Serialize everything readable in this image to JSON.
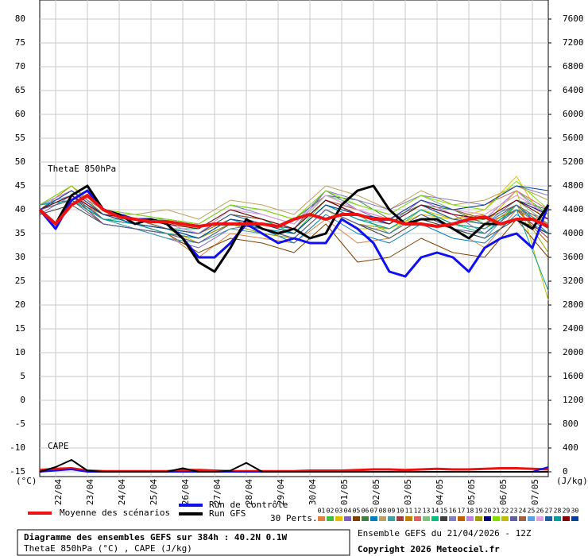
{
  "chart_data": {
    "type": "line",
    "title": "Diagramme des ensembles GEFS sur 384h : 40.2N 0.1W",
    "subtitle": "ThetaE 850hPa (°C) , CAPE (J/kg)",
    "run_label": "Ensemble GEFS du 21/04/2026 - 12Z",
    "copyright": "Copyright 2026 Meteociel.fr",
    "y_label": "(°C)",
    "y2_label": "(J/kg)",
    "theta_label": "ThetaE 850hPa",
    "cape_label": "CAPE",
    "perturbations_label": "30 Perts.",
    "grid": true,
    "xlim": [
      0,
      384
    ],
    "xticks": [
      {
        "value": 12,
        "label": "22/04"
      },
      {
        "value": 36,
        "label": "23/04"
      },
      {
        "value": 60,
        "label": "24/04"
      },
      {
        "value": 84,
        "label": "25/04"
      },
      {
        "value": 108,
        "label": "26/04"
      },
      {
        "value": 132,
        "label": "27/04"
      },
      {
        "value": 156,
        "label": "28/04"
      },
      {
        "value": 180,
        "label": "29/04"
      },
      {
        "value": 204,
        "label": "30/04"
      },
      {
        "value": 228,
        "label": "01/05"
      },
      {
        "value": 252,
        "label": "02/05"
      },
      {
        "value": 276,
        "label": "03/05"
      },
      {
        "value": 300,
        "label": "04/05"
      },
      {
        "value": 324,
        "label": "05/05"
      },
      {
        "value": 348,
        "label": "06/05"
      },
      {
        "value": 372,
        "label": "07/05"
      }
    ],
    "ylim": [
      -16,
      84
    ],
    "yticks": [
      -15,
      -10,
      -5,
      0,
      5,
      10,
      15,
      20,
      25,
      30,
      35,
      40,
      45,
      50,
      55,
      60,
      65,
      70,
      75,
      80
    ],
    "y2lim": [
      -80,
      7920
    ],
    "y2ticks": [
      0,
      400,
      800,
      1200,
      1600,
      2000,
      2400,
      2800,
      3200,
      3600,
      4000,
      4400,
      4800,
      5200,
      5600,
      6000,
      6400,
      6800,
      7200,
      7600
    ],
    "x": [
      0,
      12,
      24,
      36,
      48,
      60,
      72,
      84,
      96,
      108,
      120,
      132,
      144,
      156,
      168,
      180,
      192,
      204,
      216,
      228,
      240,
      252,
      264,
      276,
      288,
      300,
      312,
      324,
      336,
      348,
      360,
      372,
      384
    ],
    "series": [
      {
        "name": "Moyenne des scénarios",
        "color": "#ee1111",
        "values": [
          40,
          37,
          41,
          43,
          40,
          38.5,
          38,
          37.5,
          37.5,
          37,
          36.5,
          37,
          37,
          37,
          37,
          36.5,
          38,
          39,
          38,
          39,
          39,
          38,
          38,
          37,
          37,
          36.5,
          37,
          38,
          38.5,
          37,
          38,
          38,
          36.5
        ]
      },
      {
        "name": "Run de contrôle",
        "color": "#1010ee",
        "values": [
          40,
          36,
          42,
          44,
          40,
          39,
          38,
          38,
          37,
          34,
          30,
          30,
          33,
          37,
          35,
          33,
          34,
          33,
          33,
          38,
          36,
          33,
          27,
          26,
          30,
          31,
          30,
          27,
          32,
          34,
          35,
          32,
          41
        ]
      },
      {
        "name": "Run GFS",
        "color": "#000000",
        "values": [
          40,
          37,
          43,
          45,
          40,
          39,
          37,
          38,
          37,
          34,
          29,
          27,
          32,
          38,
          36,
          35,
          36,
          34,
          35,
          41,
          44,
          45,
          40,
          37,
          38,
          38,
          36,
          34,
          37,
          37,
          38,
          36,
          41
        ]
      }
    ],
    "cape_series": [
      {
        "color": "#ee1111",
        "axis": "y2",
        "values": [
          30,
          50,
          60,
          20,
          10,
          10,
          10,
          10,
          10,
          30,
          30,
          20,
          10,
          10,
          10,
          10,
          10,
          20,
          20,
          20,
          30,
          40,
          40,
          30,
          40,
          50,
          40,
          40,
          50,
          60,
          60,
          50,
          40
        ]
      },
      {
        "color": "#1010ee",
        "axis": "y2",
        "values": [
          0,
          20,
          40,
          0,
          0,
          0,
          0,
          0,
          0,
          0,
          0,
          0,
          0,
          0,
          0,
          0,
          0,
          0,
          0,
          0,
          0,
          0,
          0,
          0,
          0,
          0,
          0,
          0,
          0,
          0,
          0,
          0,
          80
        ]
      },
      {
        "color": "#000000",
        "axis": "y2",
        "values": [
          0,
          80,
          200,
          20,
          0,
          0,
          0,
          0,
          0,
          60,
          0,
          0,
          20,
          150,
          0,
          0,
          0,
          0,
          0,
          0,
          0,
          0,
          0,
          0,
          0,
          0,
          0,
          0,
          0,
          0,
          0,
          0,
          0
        ]
      }
    ],
    "perturbations": {
      "x": [
        0,
        24,
        48,
        72,
        96,
        120,
        144,
        168,
        192,
        216,
        240,
        264,
        288,
        312,
        336,
        360,
        384
      ],
      "series": [
        {
          "name": "01",
          "color": "#e08040",
          "values": [
            40,
            43,
            38,
            37,
            35,
            30,
            35,
            34,
            33,
            38,
            33,
            34,
            38,
            36,
            32,
            40,
            37
          ]
        },
        {
          "name": "02",
          "color": "#40c040",
          "values": [
            41,
            42,
            39,
            38,
            37,
            36,
            40,
            38,
            35,
            42,
            39,
            35,
            40,
            37,
            38,
            44,
            39
          ]
        },
        {
          "name": "03",
          "color": "#e0c000",
          "values": [
            40,
            44,
            40,
            38,
            36,
            33,
            37,
            36,
            34,
            40,
            36,
            36,
            39,
            38,
            40,
            47,
            36
          ]
        },
        {
          "name": "04",
          "color": "#8060c0",
          "values": [
            39,
            43,
            37,
            36,
            34,
            32,
            36,
            37,
            36,
            44,
            40,
            37,
            42,
            39,
            35,
            40,
            38
          ]
        },
        {
          "name": "05",
          "color": "#804000",
          "values": [
            40,
            42,
            38,
            37,
            35,
            31,
            34,
            33,
            31,
            37,
            29,
            30,
            34,
            31,
            30,
            38,
            30
          ]
        },
        {
          "name": "06",
          "color": "#408040",
          "values": [
            41,
            45,
            39,
            38,
            38,
            37,
            41,
            40,
            38,
            43,
            42,
            38,
            41,
            40,
            37,
            42,
            40
          ]
        },
        {
          "name": "07",
          "color": "#0080c0",
          "values": [
            40,
            43,
            38,
            37,
            36,
            34,
            38,
            36,
            33,
            39,
            35,
            33,
            37,
            34,
            33,
            39,
            35
          ]
        },
        {
          "name": "08",
          "color": "#c0a060",
          "values": [
            40,
            44,
            39,
            39,
            40,
            38,
            42,
            41,
            39,
            45,
            43,
            40,
            44,
            41,
            42,
            45,
            42
          ]
        },
        {
          "name": "09",
          "color": "#40a0a0",
          "values": [
            41,
            42,
            38,
            36,
            34,
            33,
            36,
            35,
            34,
            40,
            37,
            35,
            39,
            36,
            34,
            41,
            37
          ]
        },
        {
          "name": "10",
          "color": "#a04040",
          "values": [
            40,
            43,
            37,
            36,
            35,
            33,
            37,
            36,
            35,
            41,
            38,
            36,
            40,
            37,
            36,
            40,
            34
          ]
        },
        {
          "name": "11",
          "color": "#c08000",
          "values": [
            40,
            45,
            39,
            37,
            36,
            35,
            39,
            38,
            36,
            42,
            39,
            37,
            41,
            38,
            39,
            43,
            39
          ]
        },
        {
          "name": "12",
          "color": "#e06060",
          "values": [
            40,
            44,
            38,
            37,
            35,
            34,
            38,
            37,
            36,
            42,
            40,
            38,
            42,
            40,
            41,
            44,
            40
          ]
        },
        {
          "name": "13",
          "color": "#80c080",
          "values": [
            41,
            43,
            39,
            38,
            37,
            35,
            39,
            37,
            36,
            43,
            41,
            39,
            43,
            40,
            38,
            42,
            37
          ]
        },
        {
          "name": "14",
          "color": "#00c080",
          "values": [
            40,
            42,
            38,
            38,
            36,
            36,
            40,
            38,
            35,
            41,
            38,
            36,
            40,
            37,
            35,
            41,
            36
          ]
        },
        {
          "name": "15",
          "color": "#404040",
          "values": [
            39,
            41,
            37,
            36,
            35,
            34,
            37,
            36,
            34,
            40,
            37,
            34,
            38,
            36,
            34,
            38,
            35
          ]
        },
        {
          "name": "16",
          "color": "#8080c0",
          "values": [
            40,
            44,
            40,
            39,
            38,
            37,
            41,
            39,
            37,
            44,
            42,
            40,
            43,
            42,
            41,
            45,
            43
          ]
        },
        {
          "name": "17",
          "color": "#c06000",
          "values": [
            40,
            43,
            38,
            37,
            36,
            35,
            38,
            37,
            35,
            41,
            39,
            37,
            41,
            38,
            37,
            40,
            33
          ]
        },
        {
          "name": "18",
          "color": "#c080e0",
          "values": [
            41,
            44,
            39,
            38,
            37,
            35,
            40,
            39,
            37,
            43,
            40,
            38,
            42,
            39,
            38,
            44,
            38
          ]
        },
        {
          "name": "19",
          "color": "#a0a000",
          "values": [
            40,
            42,
            38,
            37,
            36,
            34,
            37,
            35,
            34,
            40,
            37,
            36,
            40,
            37,
            36,
            41,
            31
          ]
        },
        {
          "name": "20",
          "color": "#000080",
          "values": [
            40,
            43,
            39,
            38,
            36,
            35,
            39,
            38,
            36,
            42,
            39,
            37,
            41,
            39,
            38,
            42,
            39
          ]
        },
        {
          "name": "21",
          "color": "#80e000",
          "values": [
            41,
            45,
            40,
            39,
            38,
            37,
            41,
            40,
            38,
            44,
            41,
            39,
            43,
            41,
            40,
            46,
            40
          ]
        },
        {
          "name": "22",
          "color": "#c0c000",
          "values": [
            40,
            43,
            38,
            37,
            35,
            34,
            38,
            37,
            35,
            41,
            38,
            36,
            40,
            38,
            37,
            44,
            21
          ]
        },
        {
          "name": "23",
          "color": "#6060a0",
          "values": [
            40,
            42,
            37,
            36,
            35,
            33,
            37,
            36,
            34,
            40,
            37,
            35,
            39,
            36,
            35,
            40,
            36
          ]
        },
        {
          "name": "24",
          "color": "#a06040",
          "values": [
            40,
            44,
            39,
            38,
            36,
            35,
            39,
            38,
            36,
            42,
            40,
            38,
            42,
            40,
            38,
            41,
            37
          ]
        },
        {
          "name": "25",
          "color": "#60a0e0",
          "values": [
            41,
            43,
            38,
            37,
            36,
            34,
            38,
            37,
            35,
            41,
            38,
            37,
            41,
            38,
            37,
            42,
            38
          ]
        },
        {
          "name": "26",
          "color": "#e0a0e0",
          "values": [
            40,
            44,
            39,
            38,
            37,
            35,
            40,
            39,
            37,
            43,
            40,
            38,
            42,
            40,
            39,
            43,
            39
          ]
        },
        {
          "name": "27",
          "color": "#2060a0",
          "values": [
            40,
            43,
            38,
            37,
            36,
            35,
            39,
            37,
            36,
            42,
            39,
            37,
            41,
            38,
            37,
            41,
            35
          ]
        },
        {
          "name": "28",
          "color": "#00a0a0",
          "values": [
            41,
            42,
            38,
            37,
            35,
            34,
            38,
            36,
            35,
            41,
            38,
            36,
            40,
            37,
            36,
            40,
            23
          ]
        },
        {
          "name": "29",
          "color": "#800000",
          "values": [
            40,
            43,
            39,
            38,
            37,
            36,
            40,
            38,
            36,
            42,
            39,
            37,
            41,
            39,
            38,
            42,
            38
          ]
        },
        {
          "name": "30",
          "color": "#0040a0",
          "values": [
            40,
            44,
            39,
            37,
            36,
            34,
            38,
            37,
            35,
            41,
            39,
            38,
            42,
            40,
            41,
            45,
            44
          ]
        }
      ]
    }
  }
}
